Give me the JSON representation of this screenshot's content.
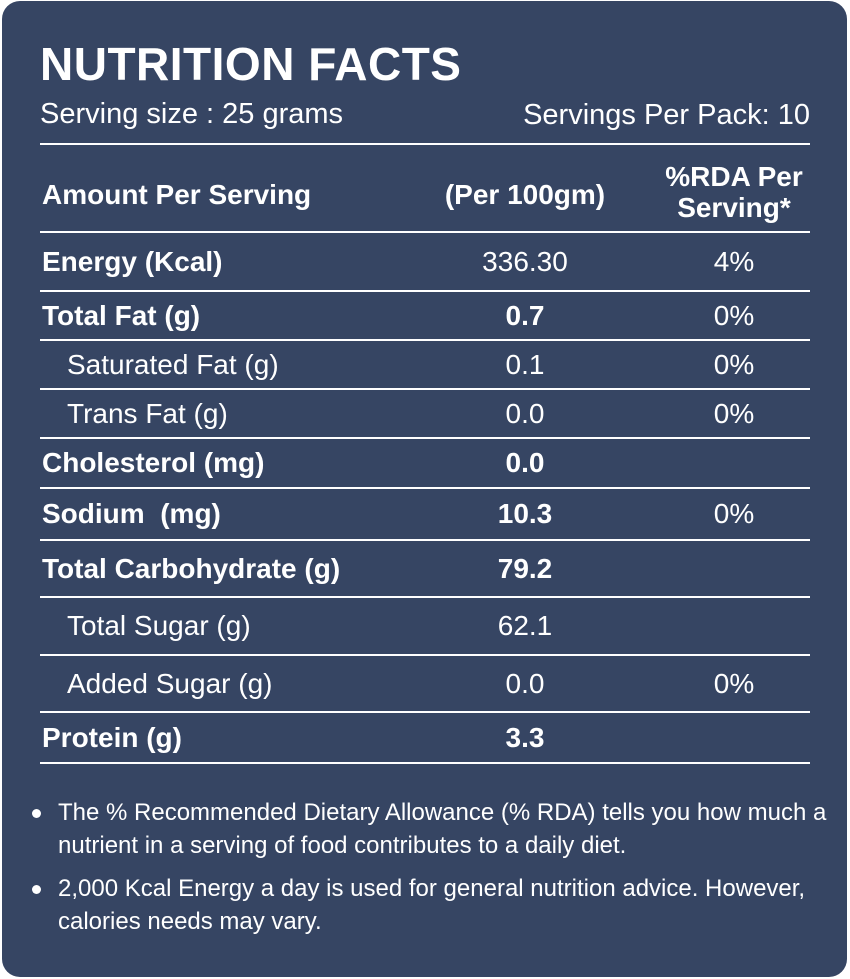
{
  "title": "NUTRITION FACTS",
  "serving_size": "Serving size : 25 grams",
  "servings_per_pack": "Servings Per Pack: 10",
  "headers": {
    "label": "Amount Per Serving",
    "per100": "(Per 100gm)",
    "rda": "%RDA Per\nServing*"
  },
  "rows": [
    {
      "label": "Energy (Kcal)",
      "value": "336.30",
      "rda": "4%"
    },
    {
      "label": "Total Fat (g)",
      "value": "0.7",
      "rda": "0%"
    },
    {
      "label": "Saturated Fat (g)",
      "value": "0.1",
      "rda": "0%"
    },
    {
      "label": "Trans Fat (g)",
      "value": "0.0",
      "rda": "0%"
    },
    {
      "label": "Cholesterol (mg)",
      "value": "0.0",
      "rda": ""
    },
    {
      "label": "Sodium  (mg)",
      "value": "10.3",
      "rda": "0%"
    },
    {
      "label": "Total Carbohydrate (g)",
      "value": "79.2",
      "rda": ""
    },
    {
      "label": "Total Sugar (g)",
      "value": "62.1",
      "rda": ""
    },
    {
      "label": "Added Sugar (g)",
      "value": "0.0",
      "rda": "0%"
    },
    {
      "label": "Protein (g)",
      "value": "3.3",
      "rda": ""
    }
  ],
  "notes": [
    "The % Recommended Dietary Allowance (% RDA) tells you how much a nutrient in a serving of food contributes to a daily diet.",
    "2,000 Kcal Energy a day is used for general nutrition advice. However, calories needs may vary."
  ],
  "colors": {
    "background": "#364563",
    "text": "#ffffff"
  }
}
